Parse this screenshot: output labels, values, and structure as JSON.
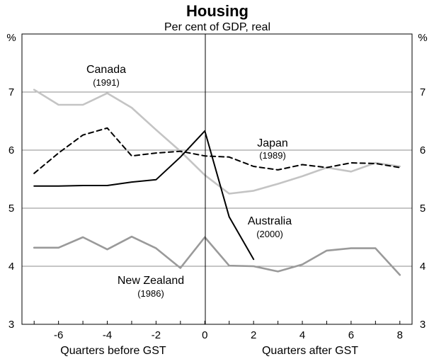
{
  "chart_data": {
    "type": "line",
    "title": "Housing",
    "subtitle": "Per cent of GDP, real",
    "y_unit_left": "%",
    "y_unit_right": "%",
    "xlabel_left": "Quarters before GST",
    "xlabel_right": "Quarters after GST",
    "xlim": [
      -7.5,
      8.5
    ],
    "ylim": [
      3,
      8
    ],
    "x_ticks": [
      -6,
      -4,
      -2,
      0,
      2,
      4,
      6,
      8
    ],
    "x_tick_labels": [
      "-6",
      "-4",
      "-2",
      "0",
      "2",
      "4",
      "6",
      "8"
    ],
    "y_ticks": [
      3,
      4,
      5,
      6,
      7
    ],
    "y_tick_labels": [
      "3",
      "4",
      "5",
      "6",
      "7"
    ],
    "grid": true,
    "vertical_line_at": 0,
    "series": [
      {
        "name": "Canada",
        "year": "(1991)",
        "color": "#c4c4c4",
        "style": "solid",
        "x": [
          -7,
          -6,
          -5,
          -4,
          -3,
          -2,
          -1,
          0,
          1,
          2,
          3,
          4,
          5,
          6,
          7,
          8
        ],
        "y": [
          7.04,
          6.78,
          6.78,
          6.98,
          6.73,
          6.35,
          5.98,
          5.57,
          5.25,
          5.3,
          5.42,
          5.55,
          5.7,
          5.63,
          5.78,
          5.72
        ]
      },
      {
        "name": "Japan",
        "year": "(1989)",
        "color": "#000000",
        "style": "dashed",
        "x": [
          -7,
          -6,
          -5,
          -4,
          -3,
          -2,
          -1,
          0,
          1,
          2,
          3,
          4,
          5,
          6,
          7,
          8
        ],
        "y": [
          5.6,
          5.95,
          6.26,
          6.38,
          5.9,
          5.95,
          5.98,
          5.9,
          5.88,
          5.72,
          5.66,
          5.75,
          5.7,
          5.78,
          5.77,
          5.7
        ]
      },
      {
        "name": "Australia",
        "year": "(2000)",
        "color": "#000000",
        "style": "solid",
        "x": [
          -7,
          -6,
          -5,
          -4,
          -3,
          -2,
          -1,
          0,
          1,
          2
        ],
        "y": [
          5.38,
          5.38,
          5.39,
          5.39,
          5.45,
          5.49,
          5.88,
          6.33,
          4.85,
          4.12
        ]
      },
      {
        "name": "New Zealand",
        "year": "(1986)",
        "color": "#9a9a9a",
        "style": "solid",
        "x": [
          -7,
          -6,
          -5,
          -4,
          -3,
          -2,
          -1,
          0,
          1,
          2,
          3,
          4,
          5,
          6,
          7,
          8
        ],
        "y": [
          4.32,
          4.32,
          4.5,
          4.29,
          4.51,
          4.31,
          3.97,
          4.5,
          4.01,
          4.0,
          3.91,
          4.03,
          4.27,
          4.31,
          4.31,
          3.85
        ]
      }
    ]
  }
}
